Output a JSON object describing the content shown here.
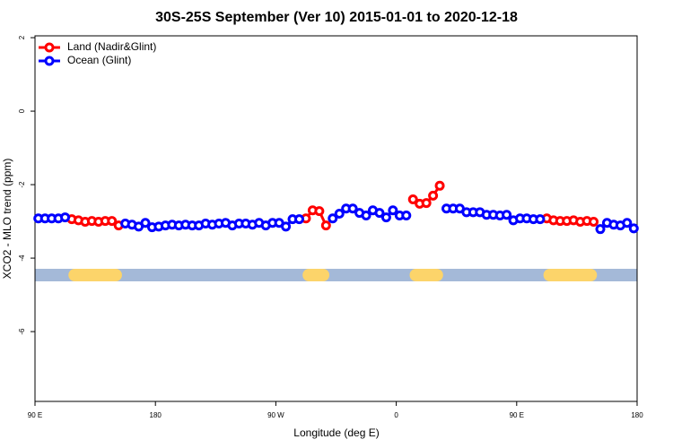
{
  "chart_data": {
    "type": "line",
    "title": "30S-25S September (Ver 10)   2015-01-01 to 2020-12-18",
    "x_label": "Longitude (deg E)",
    "y_label": "XCO2 - MLO trend (ppm)",
    "xlim": [
      90,
      540
    ],
    "ylim": [
      -7.9,
      2.05
    ],
    "xticks": [
      {
        "value": 90,
        "label": "90 E"
      },
      180,
      {
        "value": 270,
        "label": "90 W"
      },
      {
        "value": 360,
        "label": "0"
      },
      {
        "value": 450,
        "label": "90 E"
      },
      {
        "value": 540,
        "label": "180"
      }
    ],
    "yticks": [
      2,
      0,
      -2,
      -4,
      -6
    ],
    "legend": "top-left",
    "land_color": "#fcd46a",
    "ocean_color": "#a4b9d8",
    "x": [
      92.5,
      97.5,
      102.5,
      107.5,
      112.5,
      117.5,
      122.5,
      127.5,
      132.5,
      137.5,
      142.5,
      147.5,
      152.5,
      157.5,
      162.5,
      167.5,
      172.5,
      177.5,
      182.5,
      187.5,
      192.5,
      197.5,
      202.5,
      207.5,
      212.5,
      217.5,
      222.5,
      227.5,
      232.5,
      237.5,
      242.5,
      247.5,
      252.5,
      257.5,
      262.5,
      267.5,
      272.5,
      277.5,
      282.5,
      287.5,
      292.5,
      297.5,
      302.5,
      307.5,
      312.5,
      317.5,
      322.5,
      327.5,
      332.5,
      337.5,
      342.5,
      347.5,
      352.5,
      357.5,
      362.5,
      367.5,
      372.5,
      377.5,
      382.5,
      387.5,
      392.5,
      397.5,
      402.5,
      407.5,
      412.5,
      417.5,
      422.5,
      427.5,
      432.5,
      437.5,
      442.5,
      447.5,
      452.5,
      457.5,
      462.5,
      467.5,
      472.5,
      477.5,
      482.5,
      487.5,
      492.5,
      497.5,
      502.5,
      507.5,
      512.5,
      517.5,
      522.5,
      527.5,
      532.5,
      537.5
    ],
    "series": [
      {
        "name": "Land (Nadir&Glint)",
        "color": "#ff0000",
        "values": [
          null,
          null,
          null,
          null,
          null,
          -2.94,
          -2.97,
          -3.01,
          -2.99,
          -3.01,
          -2.99,
          -2.99,
          -3.11,
          null,
          null,
          null,
          null,
          null,
          null,
          null,
          null,
          null,
          null,
          null,
          null,
          null,
          null,
          null,
          null,
          null,
          null,
          null,
          null,
          null,
          null,
          null,
          null,
          null,
          null,
          null,
          -2.92,
          -2.7,
          -2.72,
          -3.11,
          null,
          null,
          null,
          null,
          null,
          null,
          null,
          null,
          null,
          null,
          null,
          null,
          -2.4,
          -2.52,
          -2.5,
          -2.3,
          -2.03,
          null,
          null,
          null,
          null,
          null,
          null,
          null,
          null,
          null,
          null,
          null,
          null,
          null,
          null,
          null,
          -2.92,
          -2.97,
          -2.99,
          -2.99,
          -2.97,
          -3.01,
          -2.99,
          -3.01,
          null,
          null,
          null,
          null,
          null,
          null
        ]
      },
      {
        "name": "Ocean (Glint)",
        "color": "#0000ff",
        "values": [
          -2.92,
          -2.92,
          -2.92,
          -2.92,
          -2.89,
          null,
          null,
          null,
          null,
          null,
          null,
          null,
          null,
          -3.06,
          -3.09,
          -3.14,
          -3.04,
          -3.16,
          -3.14,
          -3.11,
          -3.09,
          -3.11,
          -3.09,
          -3.11,
          -3.11,
          -3.06,
          -3.09,
          -3.06,
          -3.04,
          -3.11,
          -3.06,
          -3.06,
          -3.09,
          -3.04,
          -3.11,
          -3.04,
          -3.04,
          -3.14,
          -2.94,
          -2.94,
          null,
          null,
          null,
          null,
          -2.92,
          -2.79,
          -2.65,
          -2.65,
          -2.77,
          -2.84,
          -2.7,
          -2.77,
          -2.89,
          -2.7,
          -2.84,
          -2.84,
          null,
          null,
          null,
          null,
          null,
          -2.65,
          -2.65,
          -2.65,
          -2.75,
          -2.75,
          -2.75,
          -2.82,
          -2.82,
          -2.84,
          -2.82,
          -2.97,
          -2.92,
          -2.92,
          -2.94,
          -2.94,
          null,
          null,
          null,
          null,
          null,
          null,
          null,
          null,
          -3.21,
          -3.04,
          -3.09,
          -3.11,
          -3.04,
          -3.19
        ]
      }
    ]
  }
}
